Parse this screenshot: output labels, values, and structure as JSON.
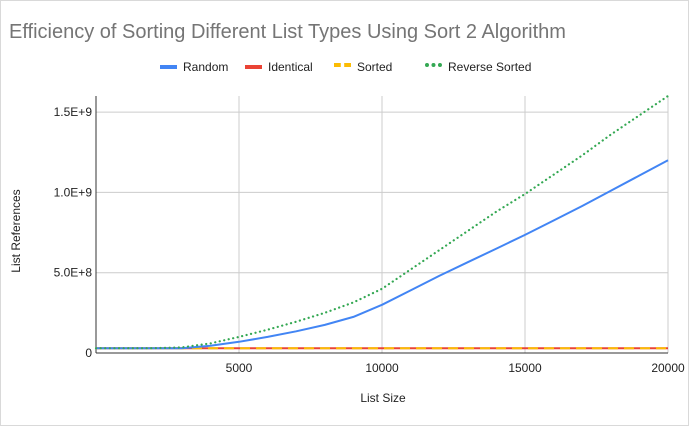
{
  "chart_data": {
    "type": "line",
    "title": "Efficiency of Sorting Different List Types Using Sort 2 Algorithm",
    "xlabel": "List Size",
    "ylabel": "List References",
    "xlim": [
      0,
      20000
    ],
    "ylim": [
      0,
      1600000000
    ],
    "x_ticks": [
      5000,
      10000,
      15000,
      20000
    ],
    "x_tick_labels": [
      "5000",
      "10000",
      "15000",
      "20000"
    ],
    "y_ticks": [
      0,
      500000000,
      1000000000,
      1500000000
    ],
    "y_tick_labels": [
      "0",
      "5.0E+8",
      "1.0E+9",
      "1.5E+9"
    ],
    "grid": true,
    "legend_position": "top",
    "series": [
      {
        "name": "Random",
        "color": "#4285F4",
        "style": "solid",
        "x": [
          0,
          1000,
          2000,
          3000,
          4000,
          5000,
          6000,
          7000,
          8000,
          9000,
          10000,
          11000,
          12000,
          13000,
          14000,
          15000,
          16000,
          17000,
          18000,
          19000,
          20000
        ],
        "y": [
          30000000,
          30000000,
          30000000,
          30000000,
          45000000,
          70000000,
          100000000,
          135000000,
          175000000,
          225000000,
          300000000,
          390000000,
          480000000,
          565000000,
          650000000,
          735000000,
          825000000,
          915000000,
          1010000000,
          1105000000,
          1200000000
        ]
      },
      {
        "name": "Identical",
        "color": "#EA4335",
        "style": "solid",
        "x": [
          0,
          5000,
          10000,
          15000,
          20000
        ],
        "y": [
          30000000,
          30000000,
          30000000,
          30000000,
          30000000
        ]
      },
      {
        "name": "Sorted",
        "color": "#FBBC04",
        "style": "dashed",
        "x": [
          0,
          5000,
          10000,
          15000,
          20000
        ],
        "y": [
          30000000,
          30000000,
          30000000,
          30000000,
          30000000
        ]
      },
      {
        "name": "Reverse Sorted",
        "color": "#34A853",
        "style": "dotted",
        "x": [
          0,
          1000,
          2000,
          3000,
          4000,
          5000,
          6000,
          7000,
          8000,
          9000,
          10000,
          11000,
          12000,
          13000,
          14000,
          15000,
          16000,
          17000,
          18000,
          19000,
          20000
        ],
        "y": [
          30000000,
          30000000,
          30000000,
          35000000,
          60000000,
          100000000,
          145000000,
          195000000,
          250000000,
          315000000,
          400000000,
          520000000,
          640000000,
          760000000,
          880000000,
          990000000,
          1110000000,
          1230000000,
          1360000000,
          1480000000,
          1600000000
        ]
      }
    ]
  }
}
